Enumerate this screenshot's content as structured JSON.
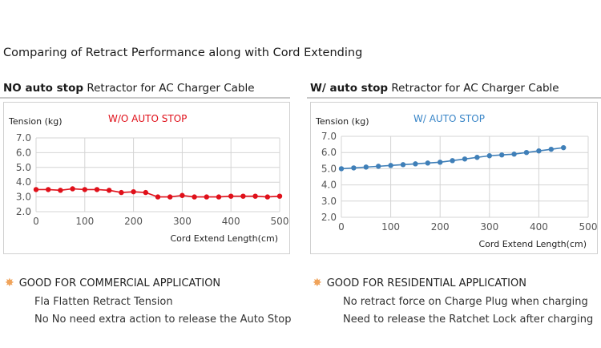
{
  "main_title": "Comparing of Retract Performance along with Cord Extending",
  "panels": [
    {
      "title_bold": "NO auto stop",
      "title_rest": " Retractor for AC Charger Cable",
      "feature": "GOOD FOR COMMERCIAL APPLICATION",
      "bullets": [
        "Fla Flatten Retract Tension",
        "No No need extra action to release the Auto Stop"
      ]
    },
    {
      "title_bold": "W/ auto stop",
      "title_rest": " Retractor for AC Charger Cable",
      "feature": "GOOD FOR RESIDENTIAL APPLICATION",
      "bullets": [
        "No retract force on Charge Plug when charging",
        "Need to release the Ratchet Lock after charging"
      ]
    }
  ],
  "chart_data": [
    {
      "type": "line",
      "annotation": "W/O AUTO STOP",
      "ylabel": "Tension (kg)",
      "xlabel": "Cord Extend Length(cm)",
      "xlim": [
        0,
        500
      ],
      "ylim": [
        2.0,
        7.0
      ],
      "xticks": [
        "0",
        "100",
        "200",
        "300",
        "400",
        "500"
      ],
      "yticks": [
        "2.0",
        "3.0",
        "4.0",
        "5.0",
        "6.0",
        "7.0"
      ],
      "grid": true,
      "color": "#e0101a",
      "annotation_color": "#e0101a",
      "x": [
        0,
        25,
        50,
        75,
        100,
        125,
        150,
        175,
        200,
        225,
        250,
        275,
        300,
        325,
        350,
        375,
        400,
        425,
        450,
        475,
        500
      ],
      "y": [
        3.5,
        3.5,
        3.45,
        3.55,
        3.5,
        3.5,
        3.45,
        3.3,
        3.35,
        3.3,
        3.0,
        3.0,
        3.1,
        3.0,
        3.0,
        3.0,
        3.05,
        3.05,
        3.05,
        3.0,
        3.05
      ]
    },
    {
      "type": "line",
      "annotation": "W/ AUTO STOP",
      "ylabel": "Tension (kg)",
      "xlabel": "Cord Extend Length(cm)",
      "xlim": [
        0,
        500
      ],
      "ylim": [
        2.0,
        7.0
      ],
      "xticks": [
        "0",
        "100",
        "200",
        "300",
        "400",
        "500"
      ],
      "yticks": [
        "2.0",
        "3.0",
        "4.0",
        "5.0",
        "6.0",
        "7.0"
      ],
      "grid": true,
      "color": "#3f7fb8",
      "annotation_color": "#3a86c8",
      "x": [
        0,
        25,
        50,
        75,
        100,
        125,
        150,
        175,
        200,
        225,
        250,
        275,
        300,
        325,
        350,
        375,
        400,
        425,
        450
      ],
      "y": [
        5.0,
        5.05,
        5.1,
        5.15,
        5.2,
        5.25,
        5.3,
        5.35,
        5.4,
        5.5,
        5.6,
        5.7,
        5.8,
        5.85,
        5.9,
        6.0,
        6.1,
        6.2,
        6.3
      ]
    }
  ]
}
